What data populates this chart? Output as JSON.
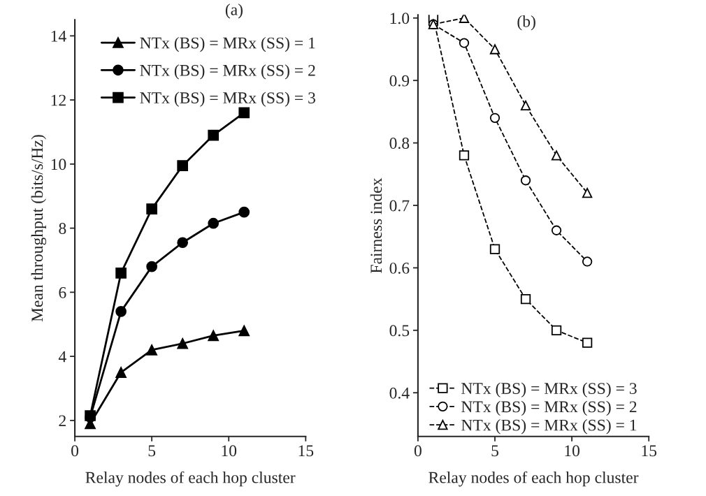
{
  "chart_data": [
    {
      "type": "line",
      "title": "(a)",
      "xlabel": "Relay nodes of each hop cluster",
      "ylabel": "Mean throughput (bits/s/Hz)",
      "x": [
        1,
        3,
        5,
        7,
        9,
        11
      ],
      "xlim": [
        0,
        15
      ],
      "xticks": [
        0,
        5,
        10,
        15
      ],
      "ylim": [
        1.5,
        14.5
      ],
      "yticks": [
        2,
        4,
        6,
        8,
        10,
        12,
        14
      ],
      "legend": "top",
      "line_style": "solid",
      "grid": false,
      "series": [
        {
          "name": "NTx (BS) = MRx (SS) = 1",
          "color": "#000000",
          "marker": "triangle",
          "values": [
            1.9,
            3.5,
            4.2,
            4.4,
            4.65,
            4.8
          ]
        },
        {
          "name": "NTx (BS) = MRx (SS) = 2",
          "color": "#000000",
          "marker": "circle",
          "values": [
            2.1,
            5.4,
            6.8,
            7.55,
            8.15,
            8.5
          ]
        },
        {
          "name": "NTx (BS) = MRx (SS) = 3",
          "color": "#000000",
          "marker": "square",
          "values": [
            2.15,
            6.6,
            8.6,
            9.95,
            10.9,
            11.6
          ]
        }
      ]
    },
    {
      "type": "line",
      "title": "(b)",
      "xlabel": "Relay nodes of each hop cluster",
      "ylabel": "Fairness index",
      "x": [
        1,
        3,
        5,
        7,
        9,
        11
      ],
      "xlim": [
        0,
        15
      ],
      "xticks": [
        0,
        5,
        10,
        15
      ],
      "ylim": [
        0.33,
        1.005
      ],
      "yticks": [
        {
          "value": 0.4,
          "label": "0.4"
        },
        {
          "value": 0.5,
          "label": "0.5"
        },
        {
          "value": 0.6,
          "label": "0.6"
        },
        {
          "value": 0.7,
          "label": "0.7"
        },
        {
          "value": 0.8,
          "label": "0.8"
        },
        {
          "value": 0.9,
          "label": "0.9"
        },
        {
          "value": 1.0,
          "label": "1.0"
        }
      ],
      "legend": "bottom",
      "line_style": "dashed",
      "grid": false,
      "series": [
        {
          "name": "NTx (BS) = MRx (SS) = 3",
          "color": "#000000",
          "marker": "square",
          "values": [
            1.0,
            0.78,
            0.63,
            0.55,
            0.5,
            0.48
          ]
        },
        {
          "name": "NTx (BS) = MRx (SS) = 2",
          "color": "#000000",
          "marker": "circle",
          "values": [
            0.99,
            0.96,
            0.84,
            0.74,
            0.66,
            0.61
          ]
        },
        {
          "name": "NTx (BS) = MRx (SS) = 1",
          "color": "#000000",
          "marker": "triangle",
          "values": [
            0.99,
            1.0,
            0.95,
            0.86,
            0.78,
            0.72
          ]
        }
      ]
    }
  ]
}
